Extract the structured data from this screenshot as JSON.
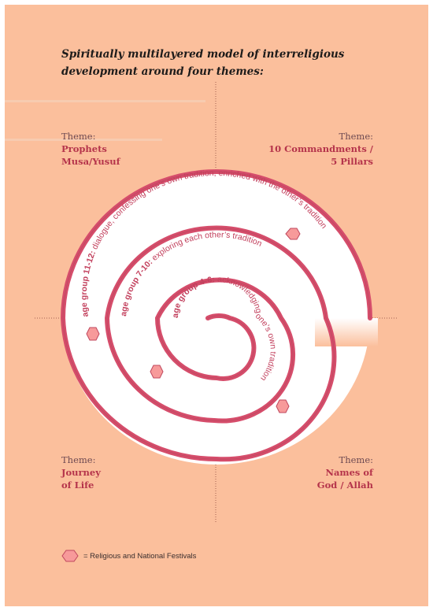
{
  "title": {
    "line1": "Spiritually multilayered model of interreligious",
    "line2": "development around four themes:"
  },
  "themes": {
    "top_left": {
      "label": "Theme:",
      "name_line1": "Prophets",
      "name_line2": "Musa/Yusuf"
    },
    "top_right": {
      "label": "Theme:",
      "name_line1": "10 Commandments /",
      "name_line2": "5 Pillars"
    },
    "bottom_left": {
      "label": "Theme:",
      "name_line1": "Journey",
      "name_line2": "of Life"
    },
    "bottom_right": {
      "label": "Theme:",
      "name_line1": "Names of",
      "name_line2": "God / Allah"
    }
  },
  "spiral_labels": {
    "outer": {
      "bold": "age group 11-12:",
      "text": " dialogue, confessing one’s own tradition, enriched with the other’s tradition"
    },
    "middle": {
      "bold": "age group 7-10:",
      "text": " exploring each other’s tradition"
    },
    "inner": {
      "bold": "age group 4-6:",
      "text": " acknowledging one’s own tradition"
    }
  },
  "legend": {
    "text": "= Religious and National Festivals",
    "icon": "hexagon-icon"
  },
  "colors": {
    "background": "#fbbf9c",
    "spiral_stroke": "#d64d6b",
    "spiral_fill": "#ffffff",
    "hexagon_fill": "#f79a9a",
    "hexagon_stroke": "#c0485e",
    "text_accent": "#b5344b",
    "axis_line": "#a3624f"
  }
}
